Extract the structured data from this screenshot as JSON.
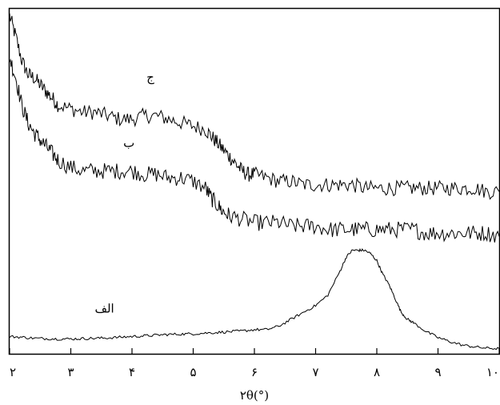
{
  "chart_data": {
    "type": "line",
    "xlabel": "۲θ(°)",
    "xlim": [
      2,
      10
    ],
    "ylabel": "",
    "yticks": [],
    "grid": false,
    "x_ticks": [
      {
        "value": 2,
        "label": "۲"
      },
      {
        "value": 3,
        "label": "۳"
      },
      {
        "value": 4,
        "label": "۴"
      },
      {
        "value": 5,
        "label": "۵"
      },
      {
        "value": 6,
        "label": "۶"
      },
      {
        "value": 7,
        "label": "۷"
      },
      {
        "value": 8,
        "label": "۸"
      },
      {
        "value": 9,
        "label": "۹"
      },
      {
        "value": 10,
        "label": "۱۰"
      }
    ],
    "y_units": "relative intensity (0 = bottom of frame, 1 = top of frame)",
    "series": [
      {
        "name": "ج",
        "label_at": [
          4.3,
          0.79
        ],
        "x": [
          2.0,
          2.1,
          2.2,
          2.3,
          2.4,
          2.5,
          2.6,
          2.7,
          2.8,
          3.0,
          3.2,
          3.4,
          3.6,
          3.8,
          4.0,
          4.2,
          4.4,
          4.6,
          4.8,
          5.0,
          5.2,
          5.3,
          5.4,
          5.5,
          5.6,
          5.7,
          5.8,
          5.9,
          6.0,
          6.2,
          6.4,
          6.6,
          6.8,
          7.0,
          7.2,
          7.4,
          7.6,
          7.8,
          8.0,
          8.2,
          8.4,
          8.6,
          8.8,
          9.0,
          9.2,
          9.4,
          9.6,
          9.8,
          10.0
        ],
        "y": [
          0.98,
          0.92,
          0.85,
          0.81,
          0.8,
          0.78,
          0.76,
          0.74,
          0.72,
          0.71,
          0.7,
          0.7,
          0.69,
          0.68,
          0.68,
          0.69,
          0.69,
          0.68,
          0.67,
          0.66,
          0.65,
          0.63,
          0.61,
          0.59,
          0.57,
          0.55,
          0.53,
          0.52,
          0.52,
          0.51,
          0.5,
          0.5,
          0.49,
          0.49,
          0.49,
          0.49,
          0.49,
          0.48,
          0.48,
          0.48,
          0.48,
          0.48,
          0.48,
          0.48,
          0.48,
          0.48,
          0.48,
          0.47,
          0.47
        ]
      },
      {
        "name": "ب",
        "label_at": [
          3.95,
          0.6
        ],
        "x": [
          2.0,
          2.1,
          2.2,
          2.3,
          2.4,
          2.5,
          2.6,
          2.7,
          2.8,
          3.0,
          3.2,
          3.4,
          3.6,
          3.8,
          4.0,
          4.2,
          4.4,
          4.6,
          4.8,
          5.0,
          5.2,
          5.3,
          5.4,
          5.5,
          5.6,
          5.8,
          6.0,
          6.2,
          6.4,
          6.6,
          6.8,
          7.0,
          7.2,
          7.4,
          7.6,
          7.8,
          8.0,
          8.2,
          8.4,
          8.6,
          8.8,
          9.0,
          9.2,
          9.4,
          9.6,
          9.8,
          10.0
        ],
        "y": [
          0.86,
          0.8,
          0.72,
          0.67,
          0.64,
          0.62,
          0.6,
          0.58,
          0.56,
          0.54,
          0.53,
          0.53,
          0.53,
          0.53,
          0.53,
          0.52,
          0.52,
          0.51,
          0.51,
          0.5,
          0.48,
          0.45,
          0.43,
          0.41,
          0.4,
          0.39,
          0.38,
          0.38,
          0.38,
          0.37,
          0.37,
          0.37,
          0.36,
          0.36,
          0.36,
          0.36,
          0.36,
          0.36,
          0.36,
          0.36,
          0.35,
          0.35,
          0.35,
          0.35,
          0.35,
          0.35,
          0.34
        ]
      },
      {
        "name": "الف",
        "label_at": [
          3.55,
          0.12
        ],
        "x": [
          2.0,
          2.2,
          2.4,
          2.6,
          2.8,
          3.0,
          3.2,
          3.4,
          3.6,
          3.8,
          4.0,
          4.2,
          4.4,
          4.6,
          4.8,
          5.0,
          5.2,
          5.4,
          5.6,
          5.8,
          6.0,
          6.2,
          6.4,
          6.6,
          6.8,
          7.0,
          7.2,
          7.4,
          7.5,
          7.6,
          7.7,
          7.8,
          7.9,
          8.0,
          8.1,
          8.2,
          8.3,
          8.4,
          8.5,
          8.6,
          8.8,
          9.0,
          9.2,
          9.4,
          9.6,
          9.8,
          10.0
        ],
        "y": [
          0.05,
          0.048,
          0.045,
          0.044,
          0.043,
          0.043,
          0.044,
          0.045,
          0.046,
          0.048,
          0.05,
          0.052,
          0.054,
          0.056,
          0.057,
          0.058,
          0.06,
          0.062,
          0.064,
          0.066,
          0.07,
          0.07,
          0.08,
          0.1,
          0.12,
          0.14,
          0.17,
          0.24,
          0.28,
          0.3,
          0.3,
          0.3,
          0.29,
          0.27,
          0.23,
          0.2,
          0.16,
          0.12,
          0.1,
          0.09,
          0.065,
          0.047,
          0.035,
          0.025,
          0.02,
          0.016,
          0.015
        ]
      }
    ]
  }
}
